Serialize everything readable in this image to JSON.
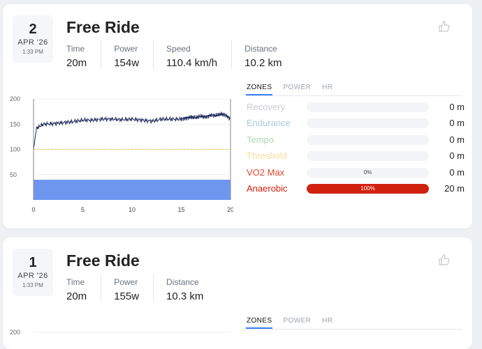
{
  "activities": [
    {
      "date": {
        "day": "2",
        "month": "APR '26",
        "time": "1:33 PM"
      },
      "title": "Free Ride",
      "stats": [
        {
          "label": "Time",
          "value": "20m"
        },
        {
          "label": "Power",
          "value": "154w"
        },
        {
          "label": "Speed",
          "value": "110.4 km/h"
        },
        {
          "label": "Distance",
          "value": "10.2 km"
        }
      ],
      "tabs": [
        "ZONES",
        "POWER",
        "HR"
      ],
      "active_tab": "ZONES",
      "zones": [
        {
          "name": "Recovery",
          "value": "0 m",
          "pct": "",
          "fraction": 0,
          "color": "#c9ccd1"
        },
        {
          "name": "Endurance",
          "value": "0 m",
          "pct": "",
          "fraction": 0,
          "color": "#a6cbe0"
        },
        {
          "name": "Tempo",
          "value": "0 m",
          "pct": "",
          "fraction": 0,
          "color": "#a9dcae"
        },
        {
          "name": "Threshold",
          "value": "0 m",
          "pct": "",
          "fraction": 0,
          "color": "#f7dc9a"
        },
        {
          "name": "VO2 Max",
          "value": "0 m",
          "pct": "0%",
          "fraction": 0,
          "color": "#e5452b"
        },
        {
          "name": "Anaerobic",
          "value": "20 m",
          "pct": "100%",
          "fraction": 1,
          "color": "#d0210f"
        }
      ]
    },
    {
      "date": {
        "day": "1",
        "month": "APR '26",
        "time": "1:33 PM"
      },
      "title": "Free Ride",
      "stats": [
        {
          "label": "Time",
          "value": "20m"
        },
        {
          "label": "Power",
          "value": "155w"
        },
        {
          "label": "Distance",
          "value": "10.3 km"
        }
      ],
      "tabs": [
        "ZONES",
        "POWER",
        "HR"
      ],
      "active_tab": "ZONES"
    }
  ],
  "chart_data": [
    {
      "type": "line",
      "y_ticks": [
        "200",
        "150",
        "100",
        "50"
      ],
      "x_ticks": [
        "0",
        "5",
        "10",
        "15",
        "20"
      ],
      "ylim": [
        0,
        200
      ],
      "xlim": [
        0,
        20
      ],
      "threshold_line": 100,
      "threshold_color": "#f5c242",
      "line_color": "#1e2a5a",
      "fill_color": "#6f96ef",
      "fill_top": 40,
      "series": [
        {
          "x": [
            0,
            0.3,
            1,
            2,
            3,
            4,
            5,
            6,
            7,
            8,
            9,
            10,
            11,
            12,
            13,
            14,
            15,
            15.5,
            16,
            16.5,
            17,
            17.5,
            18,
            18.5,
            19,
            19.5,
            20
          ],
          "values": [
            100,
            142,
            150,
            151,
            153,
            155,
            158,
            158,
            160,
            160,
            159,
            160,
            158,
            156,
            160,
            160,
            160,
            162,
            164,
            163,
            166,
            164,
            168,
            167,
            170,
            168,
            160
          ]
        }
      ]
    },
    {
      "type": "line",
      "y_ticks": [
        "200"
      ],
      "ylim": [
        0,
        200
      ]
    }
  ]
}
